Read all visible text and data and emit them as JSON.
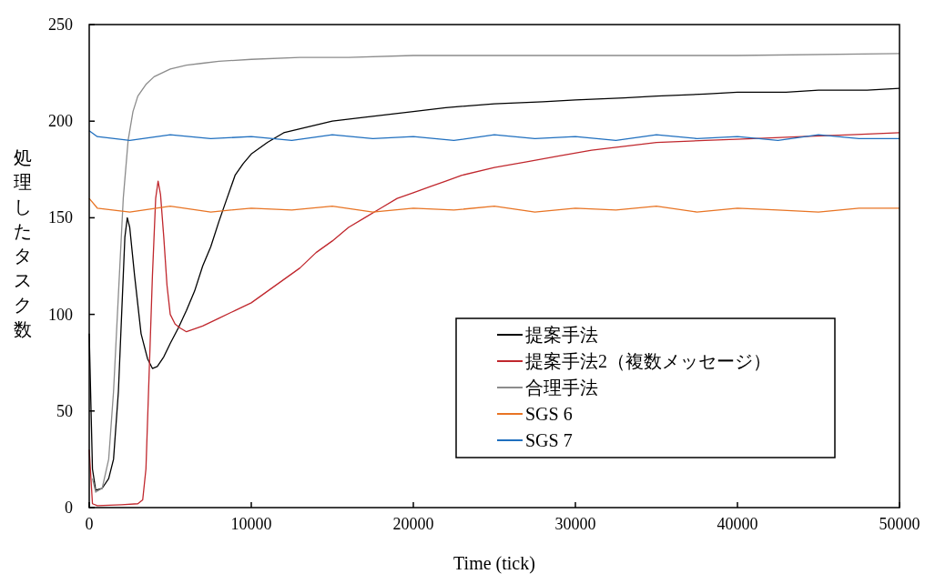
{
  "chart_data": {
    "type": "line",
    "xlabel": "Time (tick)",
    "ylabel": "処理したタスク数",
    "xlim": [
      0,
      50000
    ],
    "ylim": [
      0,
      250
    ],
    "xticks": [
      0,
      10000,
      20000,
      30000,
      40000,
      50000
    ],
    "yticks": [
      0,
      50,
      100,
      150,
      200,
      250
    ],
    "grid": false,
    "legend": "bottom right",
    "marker": "none",
    "line_style": "solid",
    "series": [
      {
        "name": "提案手法",
        "color": "#000000",
        "x": [
          0,
          200,
          400,
          800,
          1200,
          1500,
          1800,
          2000,
          2200,
          2350,
          2500,
          2800,
          3200,
          3600,
          3900,
          4200,
          4600,
          5000,
          5500,
          6000,
          6500,
          7000,
          7500,
          8000,
          8500,
          9000,
          9500,
          10000,
          11000,
          12000,
          13000,
          14000,
          15000,
          17000,
          20000,
          22000,
          25000,
          28000,
          30000,
          33000,
          35000,
          38000,
          40000,
          43000,
          45000,
          48000,
          50000
        ],
        "values": [
          90,
          20,
          9,
          10,
          15,
          25,
          60,
          100,
          140,
          150,
          145,
          120,
          90,
          77,
          72,
          73,
          78,
          85,
          93,
          102,
          112,
          125,
          135,
          148,
          160,
          172,
          178,
          183,
          189,
          194,
          196,
          198,
          200,
          202,
          205,
          207,
          209,
          210,
          211,
          212,
          213,
          214,
          215,
          215,
          216,
          216,
          217
        ]
      },
      {
        "name": "提案手法2（複数メッセージ）",
        "color": "#c0272d",
        "x": [
          0,
          200,
          500,
          2000,
          3000,
          3300,
          3500,
          3700,
          3900,
          4100,
          4250,
          4400,
          4600,
          4800,
          5000,
          5300,
          5600,
          6000,
          7000,
          8000,
          9000,
          10000,
          11000,
          12000,
          13000,
          14000,
          15000,
          16000,
          17000,
          18000,
          19000,
          20000,
          21000,
          22000,
          23000,
          25000,
          27000,
          29000,
          31000,
          33000,
          35000,
          38000,
          41000,
          44000,
          47000,
          50000
        ],
        "values": [
          30,
          2,
          1,
          1.5,
          2,
          4,
          20,
          70,
          120,
          160,
          169,
          162,
          140,
          115,
          100,
          95,
          93,
          91,
          94,
          98,
          102,
          106,
          112,
          118,
          124,
          132,
          138,
          145,
          150,
          155,
          160,
          163,
          166,
          169,
          172,
          176,
          179,
          182,
          185,
          187,
          189,
          190,
          191,
          192,
          193,
          194
        ]
      },
      {
        "name": "合理手法",
        "color": "#8c8c8c",
        "x": [
          200,
          400,
          800,
          1200,
          1500,
          1800,
          2100,
          2400,
          2700,
          3000,
          3500,
          4000,
          5000,
          6000,
          7000,
          8000,
          10000,
          13000,
          16000,
          20000,
          30000,
          40000,
          50000
        ],
        "values": [
          15,
          8,
          10,
          25,
          60,
          110,
          160,
          190,
          205,
          213,
          219,
          223,
          227,
          229,
          230,
          231,
          232,
          233,
          233,
          234,
          234,
          234,
          235
        ]
      },
      {
        "name": "SGS 6",
        "color": "#e87424",
        "x": [
          0,
          500,
          2500,
          5000,
          7500,
          10000,
          12500,
          15000,
          17500,
          20000,
          22500,
          25000,
          27500,
          30000,
          32500,
          35000,
          37500,
          40000,
          42500,
          45000,
          47500,
          50000
        ],
        "values": [
          160,
          155,
          153,
          156,
          153,
          155,
          154,
          156,
          153,
          155,
          154,
          156,
          153,
          155,
          154,
          156,
          153,
          155,
          154,
          153,
          155,
          155
        ]
      },
      {
        "name": "SGS 7",
        "color": "#1f6fbf",
        "x": [
          0,
          500,
          2500,
          5000,
          7500,
          10000,
          12500,
          15000,
          17500,
          20000,
          22500,
          25000,
          27500,
          30000,
          32500,
          35000,
          37500,
          40000,
          42500,
          45000,
          47500,
          50000
        ],
        "values": [
          195,
          192,
          190,
          193,
          191,
          192,
          190,
          193,
          191,
          192,
          190,
          193,
          191,
          192,
          190,
          193,
          191,
          192,
          190,
          193,
          191,
          191
        ]
      }
    ]
  }
}
